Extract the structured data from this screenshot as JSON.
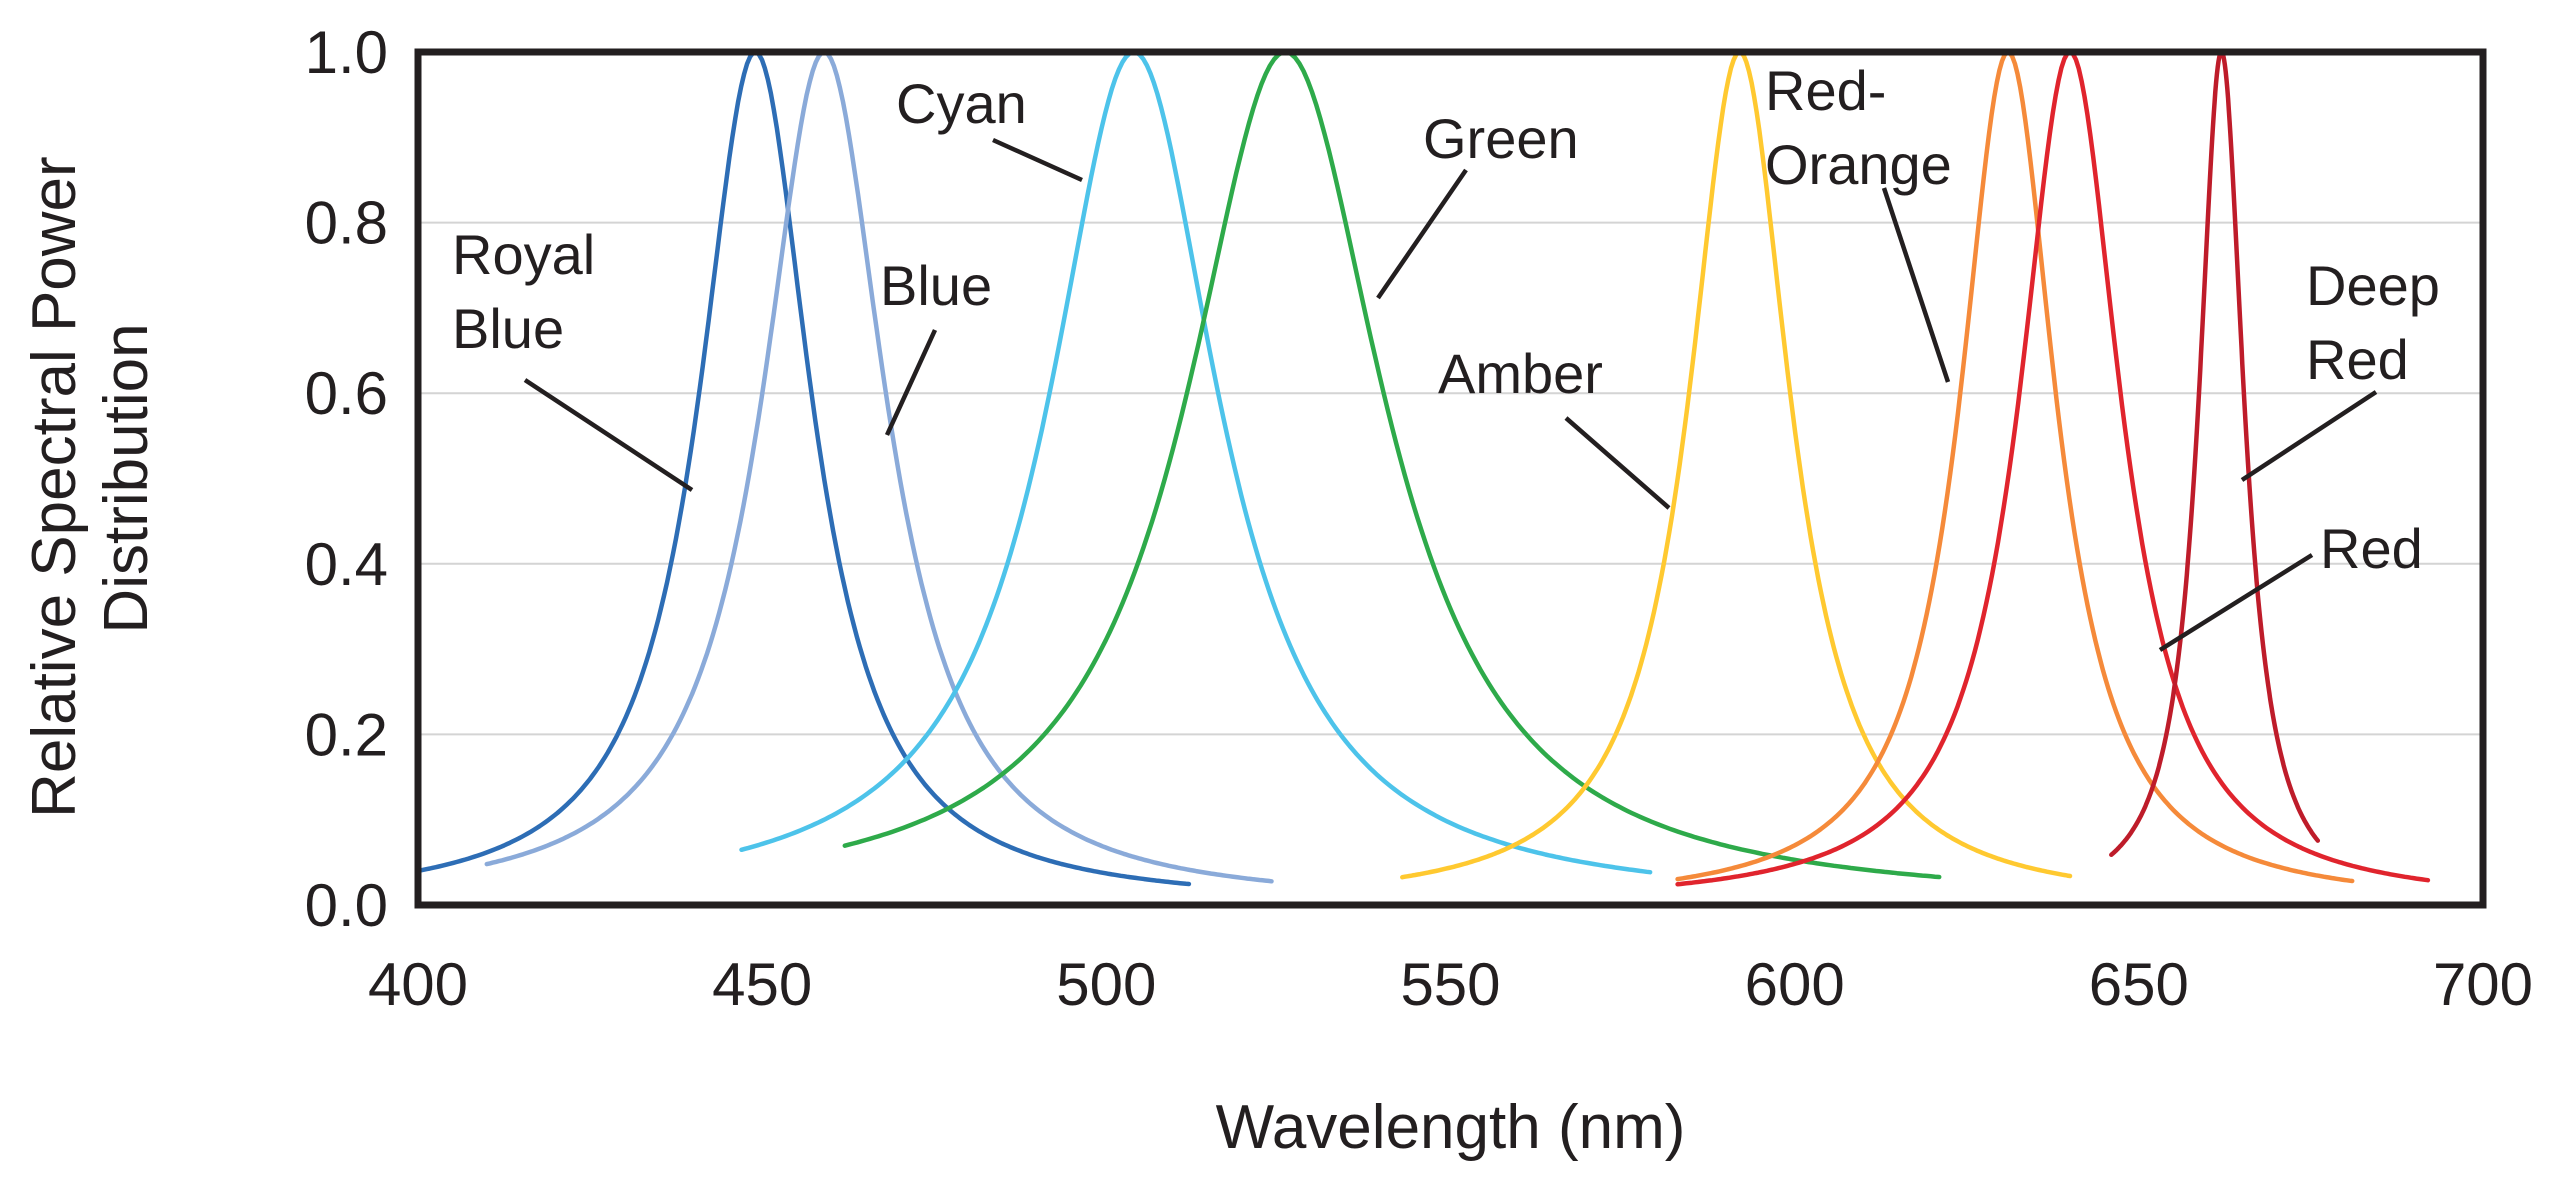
{
  "chart_data": {
    "type": "line",
    "title": "",
    "xlabel": "Wavelength (nm)",
    "ylabel_lines": [
      "Relative Spectral Power",
      "Distribution"
    ],
    "xlim": [
      400,
      700
    ],
    "ylim": [
      0,
      1
    ],
    "x_ticks": [
      400,
      450,
      500,
      550,
      600,
      650,
      700
    ],
    "y_ticks": [
      "0.0",
      "0.2",
      "0.4",
      "0.6",
      "0.8",
      "1.0"
    ],
    "grid": true,
    "series": [
      {
        "name": "Royal Blue",
        "label_lines": [
          "Royal",
          "Blue"
        ],
        "color": "#2d6db5",
        "peak": 449,
        "fwhm": 20,
        "range": [
          400,
          512
        ],
        "anchor": [
          441,
          0.48
        ],
        "label_at": [
          420,
          0.8
        ]
      },
      {
        "name": "Blue",
        "label_lines": [
          "Blue"
        ],
        "color": "#8aaad9",
        "peak": 459,
        "fwhm": 22,
        "range": [
          410,
          524
        ],
        "anchor": [
          467,
          0.55
        ],
        "label_at": [
          468,
          0.71
        ]
      },
      {
        "name": "Cyan",
        "label_lines": [
          "Cyan"
        ],
        "color": "#4dc3ea",
        "peak": 504,
        "fwhm": 30,
        "range": [
          447,
          579
        ],
        "anchor": [
          497,
          0.85
        ],
        "label_at": [
          488,
          0.94
        ]
      },
      {
        "name": "Green",
        "label_lines": [
          "Green"
        ],
        "color": "#2eaa4a",
        "peak": 526,
        "fwhm": 35,
        "range": [
          462,
          621
        ],
        "anchor": [
          539,
          0.71
        ],
        "label_at": [
          560,
          0.89
        ]
      },
      {
        "name": "Amber",
        "label_lines": [
          "Amber"
        ],
        "color": "#ffc930",
        "peak": 592,
        "fwhm": 18,
        "range": [
          543,
          640
        ],
        "anchor": [
          583,
          0.46
        ],
        "label_at": [
          562,
          0.62
        ]
      },
      {
        "name": "Red-Orange",
        "label_lines": [
          "Red-",
          "Orange"
        ],
        "color": "#f58a3a",
        "peak": 631,
        "fwhm": 17,
        "range": [
          583,
          681
        ],
        "anchor": [
          623,
          0.62
        ],
        "label_at": [
          590,
          0.95
        ]
      },
      {
        "name": "Red",
        "label_lines": [
          "Red"
        ],
        "color": "#e0242d",
        "peak": 640,
        "fwhm": 18,
        "range": [
          583,
          692
        ],
        "anchor": [
          654,
          0.3
        ],
        "label_at": [
          682,
          0.43
        ]
      },
      {
        "name": "Deep Red",
        "label_lines": [
          "Deep",
          "Red"
        ],
        "color": "#be1c2a",
        "peak": 662,
        "fwhm": 8,
        "range": [
          646,
          676
        ],
        "anchor": [
          664,
          0.5
        ],
        "label_at": [
          684,
          0.71
        ]
      }
    ]
  }
}
